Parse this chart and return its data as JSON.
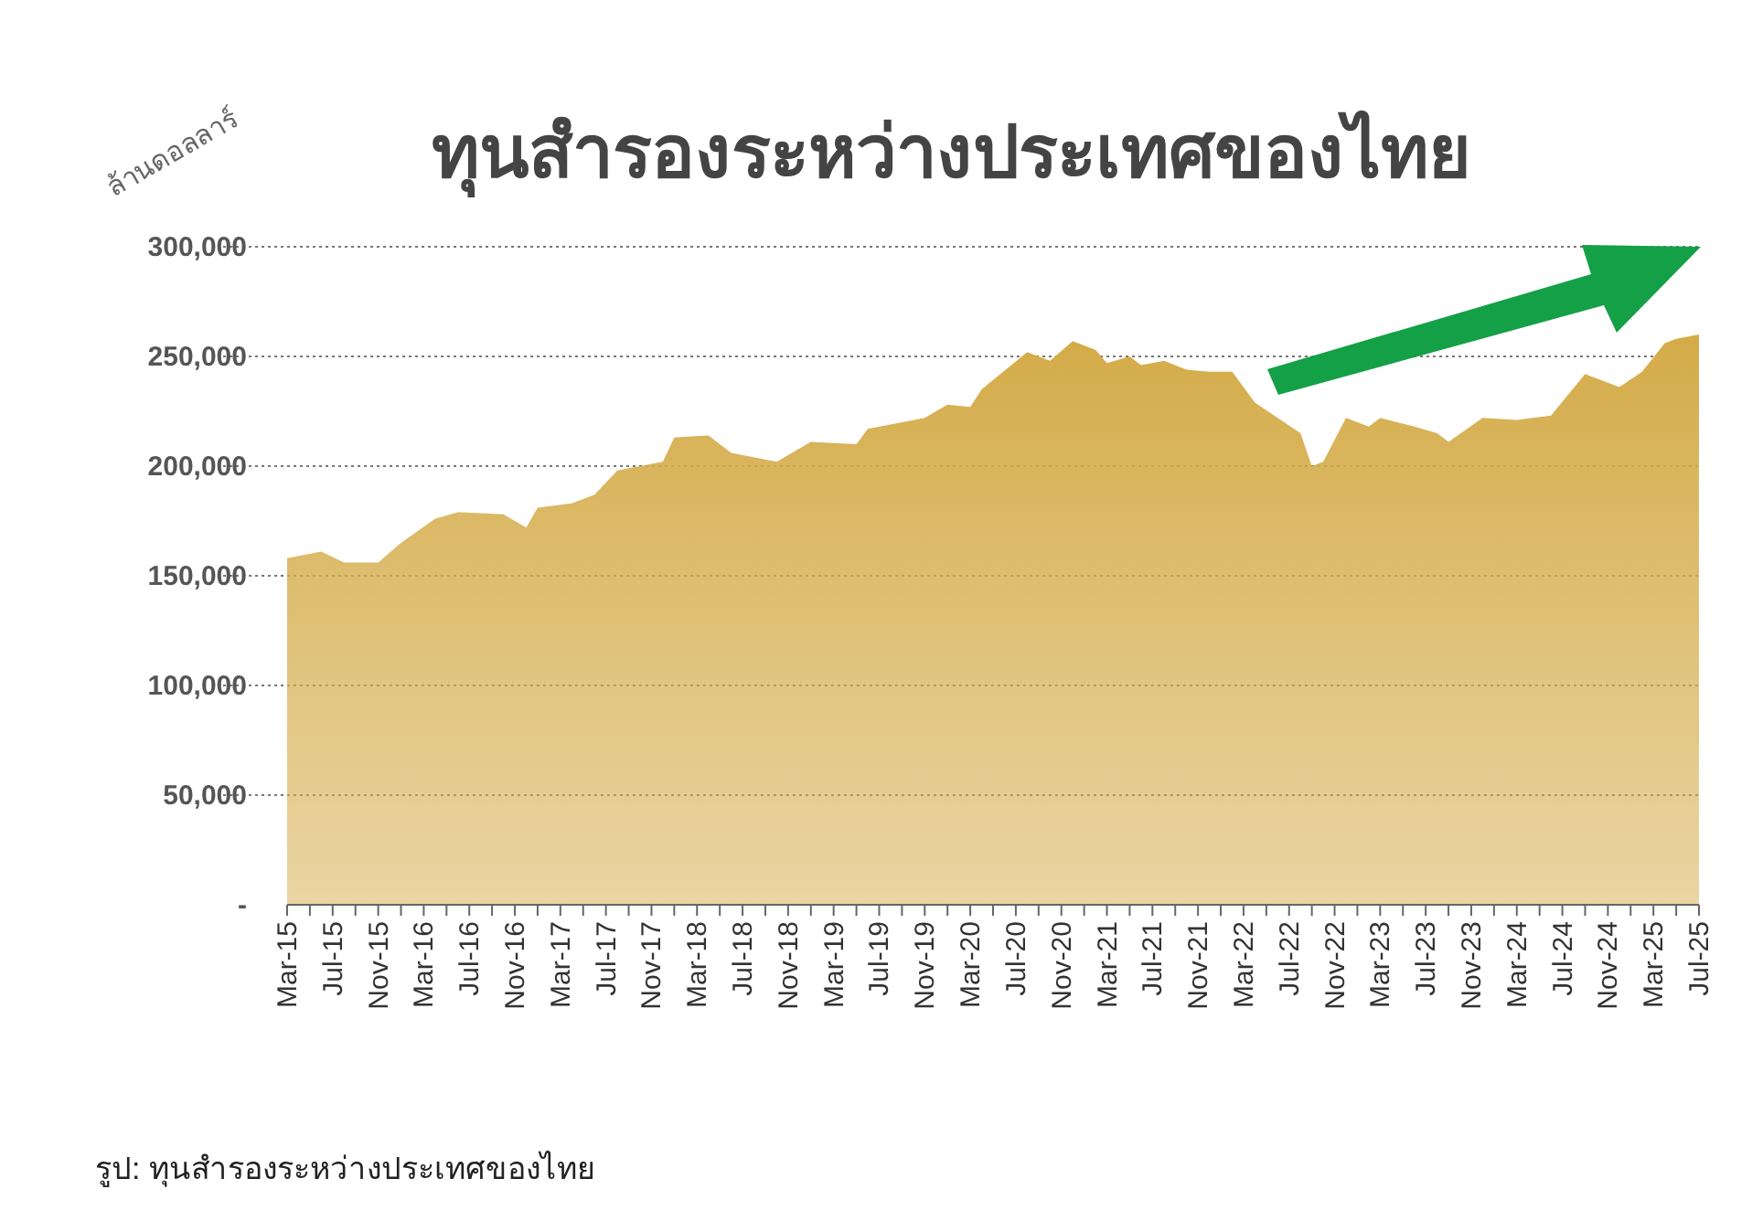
{
  "chart_data": {
    "type": "area",
    "title": "ทุนสำรองระหว่างประเทศของไทย",
    "ylabel": "ล้านดอลลาร์",
    "annotations": [
      "รูป: ทุนสำรองระหว่างประเทศของไทย"
    ],
    "x": [
      "2015-03",
      "2015-06",
      "2015-08",
      "2015-11",
      "2016-01",
      "2016-04",
      "2016-06",
      "2016-10",
      "2016-12",
      "2017-01",
      "2017-04",
      "2017-06",
      "2017-08",
      "2017-12",
      "2018-01",
      "2018-04",
      "2018-06",
      "2018-10",
      "2019-01",
      "2019-05",
      "2019-06",
      "2019-11",
      "2020-01",
      "2020-03",
      "2020-04",
      "2020-08",
      "2020-10",
      "2020-12",
      "2021-02",
      "2021-03",
      "2021-05",
      "2021-06",
      "2021-08",
      "2021-10",
      "2021-12",
      "2022-02",
      "2022-04",
      "2022-06",
      "2022-08",
      "2022-09",
      "2022-10",
      "2022-12",
      "2023-02",
      "2023-03",
      "2023-06",
      "2023-08",
      "2023-09",
      "2023-12",
      "2024-03",
      "2024-06",
      "2024-09",
      "2024-12",
      "2025-02",
      "2025-04",
      "2025-05",
      "2025-07"
    ],
    "series": [
      {
        "color": "#d4ab48",
        "values": [
          158000,
          161000,
          156000,
          156000,
          165000,
          176000,
          179000,
          178000,
          172000,
          181000,
          183000,
          187000,
          198000,
          202000,
          213000,
          214000,
          206000,
          202000,
          211000,
          210000,
          217000,
          222000,
          228000,
          227000,
          235000,
          252000,
          248000,
          257000,
          253000,
          247000,
          250000,
          246000,
          248000,
          244000,
          243000,
          243000,
          229000,
          222000,
          215000,
          200000,
          202000,
          222000,
          218000,
          222000,
          218000,
          215000,
          211000,
          222000,
          221000,
          223000,
          242000,
          236000,
          243000,
          256000,
          258000,
          260000
        ]
      }
    ],
    "xlim": [
      "2015-03",
      "2025-07"
    ],
    "xticks": [
      {
        "value": "2015-03",
        "label": "Mar-15"
      },
      {
        "value": "2015-05",
        "label": null
      },
      {
        "value": "2015-07",
        "label": "Jul-15"
      },
      {
        "value": "2015-09",
        "label": null
      },
      {
        "value": "2015-11",
        "label": "Nov-15"
      },
      {
        "value": "2016-01",
        "label": null
      },
      {
        "value": "2016-03",
        "label": "Mar-16"
      },
      {
        "value": "2016-05",
        "label": null
      },
      {
        "value": "2016-07",
        "label": "Jul-16"
      },
      {
        "value": "2016-09",
        "label": null
      },
      {
        "value": "2016-11",
        "label": "Nov-16"
      },
      {
        "value": "2017-01",
        "label": null
      },
      {
        "value": "2017-03",
        "label": "Mar-17"
      },
      {
        "value": "2017-05",
        "label": null
      },
      {
        "value": "2017-07",
        "label": "Jul-17"
      },
      {
        "value": "2017-09",
        "label": null
      },
      {
        "value": "2017-11",
        "label": "Nov-17"
      },
      {
        "value": "2018-01",
        "label": null
      },
      {
        "value": "2018-03",
        "label": "Mar-18"
      },
      {
        "value": "2018-05",
        "label": null
      },
      {
        "value": "2018-07",
        "label": "Jul-18"
      },
      {
        "value": "2018-09",
        "label": null
      },
      {
        "value": "2018-11",
        "label": "Nov-18"
      },
      {
        "value": "2019-01",
        "label": null
      },
      {
        "value": "2019-03",
        "label": "Mar-19"
      },
      {
        "value": "2019-05",
        "label": null
      },
      {
        "value": "2019-07",
        "label": "Jul-19"
      },
      {
        "value": "2019-09",
        "label": null
      },
      {
        "value": "2019-11",
        "label": "Nov-19"
      },
      {
        "value": "2020-01",
        "label": null
      },
      {
        "value": "2020-03",
        "label": "Mar-20"
      },
      {
        "value": "2020-05",
        "label": null
      },
      {
        "value": "2020-07",
        "label": "Jul-20"
      },
      {
        "value": "2020-09",
        "label": null
      },
      {
        "value": "2020-11",
        "label": "Nov-20"
      },
      {
        "value": "2021-01",
        "label": null
      },
      {
        "value": "2021-03",
        "label": "Mar-21"
      },
      {
        "value": "2021-05",
        "label": null
      },
      {
        "value": "2021-07",
        "label": "Jul-21"
      },
      {
        "value": "2021-09",
        "label": null
      },
      {
        "value": "2021-11",
        "label": "Nov-21"
      },
      {
        "value": "2022-01",
        "label": null
      },
      {
        "value": "2022-03",
        "label": "Mar-22"
      },
      {
        "value": "2022-05",
        "label": null
      },
      {
        "value": "2022-07",
        "label": "Jul-22"
      },
      {
        "value": "2022-09",
        "label": null
      },
      {
        "value": "2022-11",
        "label": "Nov-22"
      },
      {
        "value": "2023-01",
        "label": null
      },
      {
        "value": "2023-03",
        "label": "Mar-23"
      },
      {
        "value": "2023-05",
        "label": null
      },
      {
        "value": "2023-07",
        "label": "Jul-23"
      },
      {
        "value": "2023-09",
        "label": null
      },
      {
        "value": "2023-11",
        "label": "Nov-23"
      },
      {
        "value": "2024-01",
        "label": null
      },
      {
        "value": "2024-03",
        "label": "Mar-24"
      },
      {
        "value": "2024-05",
        "label": null
      },
      {
        "value": "2024-07",
        "label": "Jul-24"
      },
      {
        "value": "2024-09",
        "label": null
      },
      {
        "value": "2024-11",
        "label": "Nov-24"
      },
      {
        "value": "2025-01",
        "label": null
      },
      {
        "value": "2025-03",
        "label": "Mar-25"
      },
      {
        "value": "2025-05",
        "label": null
      },
      {
        "value": "2025-07",
        "label": "Jul-25"
      }
    ],
    "ylim": [
      0,
      300000
    ],
    "yticks": [
      {
        "value": 0,
        "label": "-"
      },
      {
        "value": 50000,
        "label": "50,000"
      },
      {
        "value": 100000,
        "label": "100,000"
      },
      {
        "value": 150000,
        "label": "150,000"
      },
      {
        "value": 200000,
        "label": "200,000"
      },
      {
        "value": 250000,
        "label": "250,000"
      },
      {
        "value": 300000,
        "label": "300,000"
      }
    ],
    "grid": "y"
  }
}
